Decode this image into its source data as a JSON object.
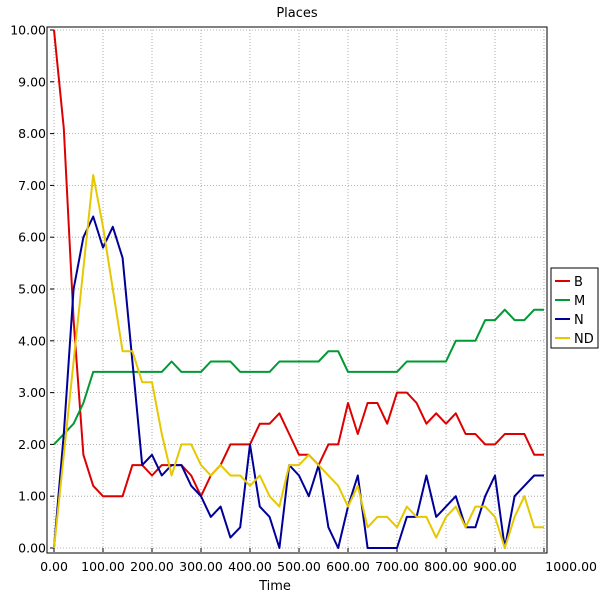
{
  "chart_data": {
    "type": "line",
    "title": "Places",
    "xlabel": "Time",
    "ylabel": "",
    "xlim": [
      0,
      1000
    ],
    "ylim": [
      0,
      10
    ],
    "grid": true,
    "legend_position": "right",
    "x_ticks": [
      "0.00",
      "100.00",
      "200.00",
      "300.00",
      "400.00",
      "500.00",
      "600.00",
      "700.00",
      "800.00",
      "900.00",
      "1000.00"
    ],
    "y_ticks": [
      "0.00",
      "1.00",
      "2.00",
      "3.00",
      "4.00",
      "5.00",
      "6.00",
      "7.00",
      "8.00",
      "9.00",
      "10.00"
    ],
    "x": [
      0,
      20,
      40,
      60,
      80,
      100,
      120,
      140,
      160,
      180,
      200,
      220,
      240,
      260,
      280,
      300,
      320,
      340,
      360,
      380,
      400,
      420,
      440,
      460,
      480,
      500,
      520,
      540,
      560,
      580,
      600,
      620,
      640,
      660,
      680,
      700,
      720,
      740,
      760,
      780,
      800,
      820,
      840,
      860,
      880,
      900,
      920,
      940,
      960,
      980,
      1000
    ],
    "series": [
      {
        "name": "B",
        "color": "#dd0000",
        "values": [
          10,
          8.1,
          4.4,
          1.8,
          1.2,
          1.0,
          1.0,
          1.0,
          1.6,
          1.6,
          1.4,
          1.6,
          1.6,
          1.6,
          1.4,
          1.0,
          1.4,
          1.6,
          2.0,
          2.0,
          2.0,
          2.4,
          2.4,
          2.6,
          2.2,
          1.8,
          1.8,
          1.6,
          2.0,
          2.0,
          2.8,
          2.2,
          2.8,
          2.8,
          2.4,
          3.0,
          3.0,
          2.8,
          2.4,
          2.6,
          2.4,
          2.6,
          2.2,
          2.2,
          2.0,
          2.0,
          2.2,
          2.2,
          2.2,
          1.8,
          1.8
        ]
      },
      {
        "name": "M",
        "color": "#009933",
        "values": [
          2.0,
          2.2,
          2.4,
          2.8,
          3.4,
          3.4,
          3.4,
          3.4,
          3.4,
          3.4,
          3.4,
          3.4,
          3.6,
          3.4,
          3.4,
          3.4,
          3.6,
          3.6,
          3.6,
          3.4,
          3.4,
          3.4,
          3.4,
          3.6,
          3.6,
          3.6,
          3.6,
          3.6,
          3.8,
          3.8,
          3.4,
          3.4,
          3.4,
          3.4,
          3.4,
          3.4,
          3.6,
          3.6,
          3.6,
          3.6,
          3.6,
          4.0,
          4.0,
          4.0,
          4.4,
          4.4,
          4.6,
          4.4,
          4.4,
          4.6,
          4.6
        ]
      },
      {
        "name": "N",
        "color": "#000099",
        "values": [
          0,
          2.2,
          5.0,
          6.0,
          6.4,
          5.8,
          6.2,
          5.6,
          3.6,
          1.6,
          1.8,
          1.4,
          1.6,
          1.6,
          1.2,
          1.0,
          0.6,
          0.8,
          0.2,
          0.4,
          2.0,
          0.8,
          0.6,
          0,
          1.6,
          1.4,
          1.0,
          1.6,
          0.4,
          0,
          0.8,
          1.4,
          0,
          0,
          0,
          0,
          0.6,
          0.6,
          1.4,
          0.6,
          0.8,
          1.0,
          0.4,
          0.4,
          1.0,
          1.4,
          0,
          1.0,
          1.2,
          1.4,
          1.4
        ]
      },
      {
        "name": "ND",
        "color": "#e6c800",
        "values": [
          0,
          1.8,
          3.6,
          5.4,
          7.2,
          6.2,
          5.0,
          3.8,
          3.8,
          3.2,
          3.2,
          2.2,
          1.4,
          2.0,
          2.0,
          1.6,
          1.4,
          1.6,
          1.4,
          1.4,
          1.2,
          1.4,
          1.0,
          0.8,
          1.6,
          1.6,
          1.8,
          1.6,
          1.4,
          1.2,
          0.8,
          1.2,
          0.4,
          0.6,
          0.6,
          0.4,
          0.8,
          0.6,
          0.6,
          0.2,
          0.6,
          0.8,
          0.4,
          0.8,
          0.8,
          0.6,
          0,
          0.6,
          1.0,
          0.4,
          0.4
        ]
      }
    ]
  }
}
